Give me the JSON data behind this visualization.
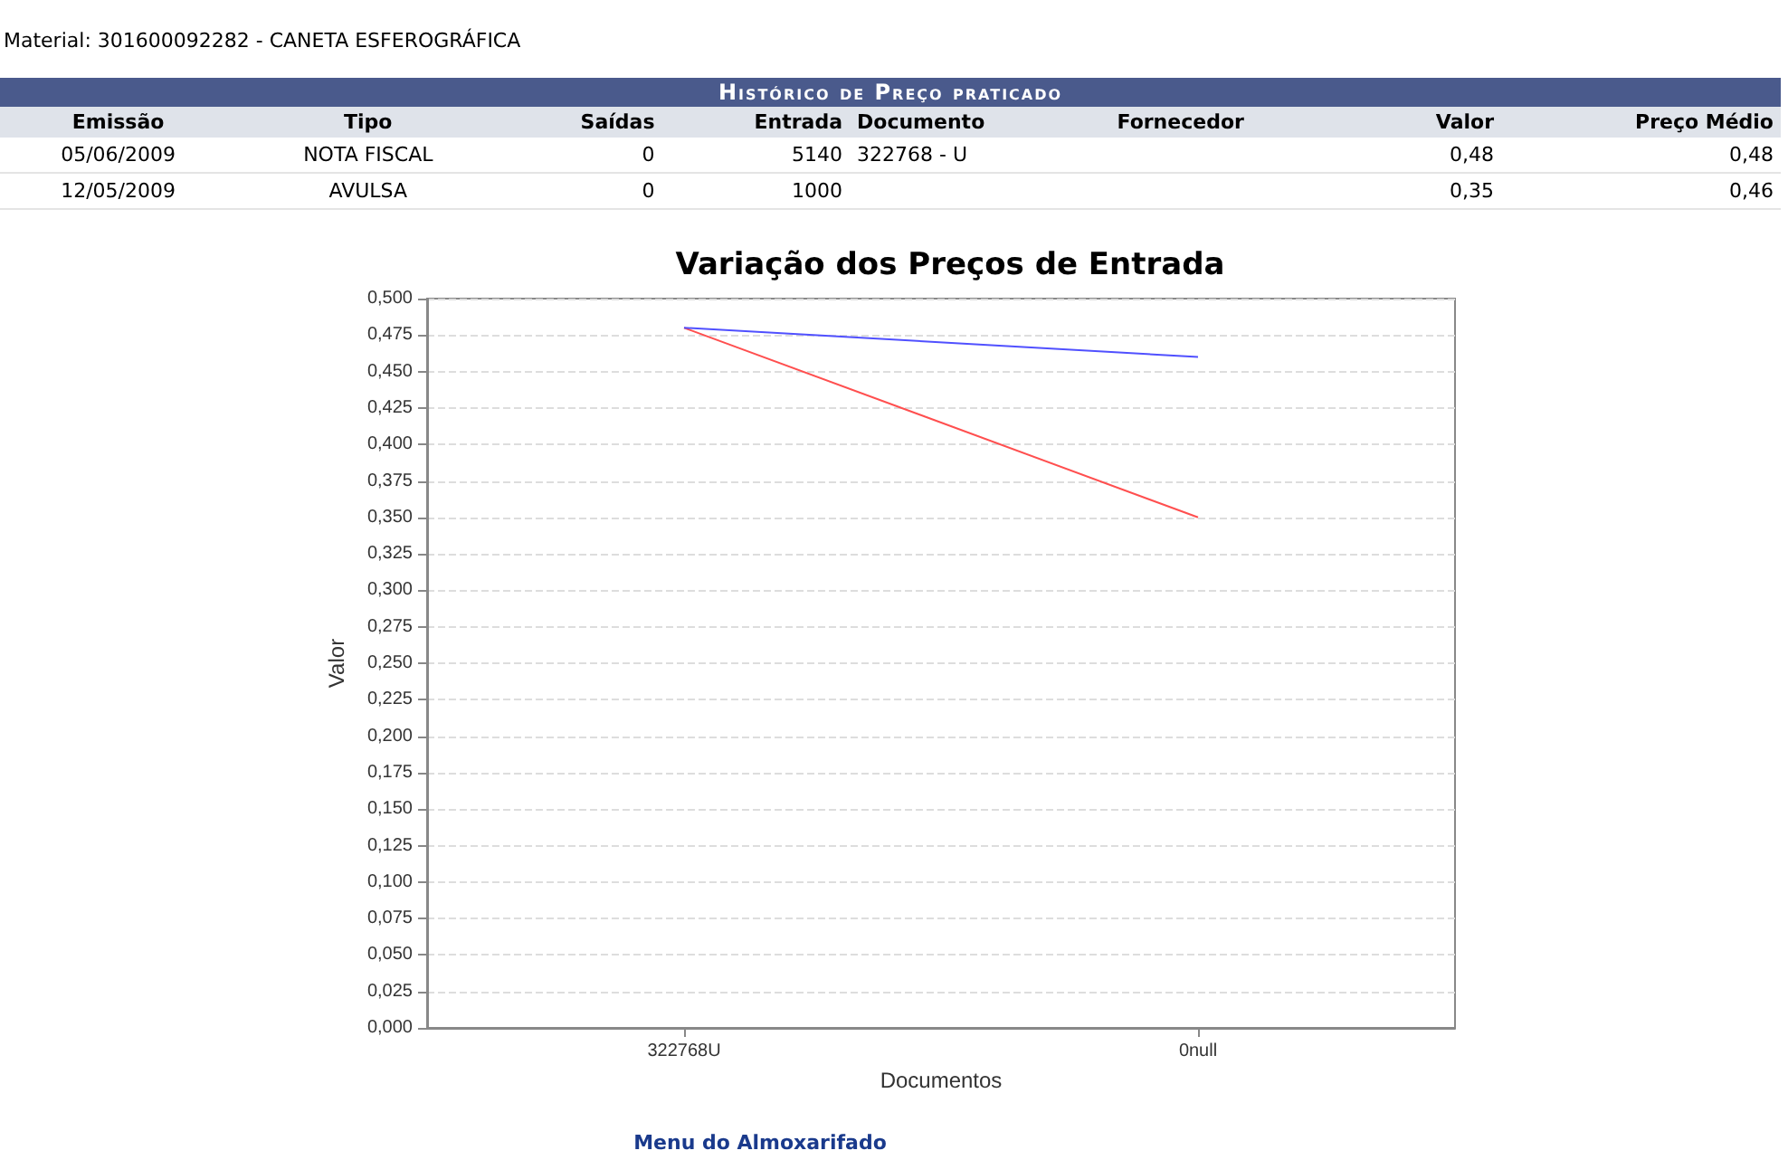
{
  "chart_data": [
    {
      "type": "other",
      "title": "Histórico de Preço praticado",
      "subtitle": "Material: 301600092282 - CANETA ESFEROGRÁFICA",
      "categories": [
        "Emissão",
        "Tipo",
        "Saídas",
        "Entrada",
        "Documento",
        "Fornecedor",
        "Valor",
        "Preço Médio"
      ],
      "annotations": [
        "05/06/2009",
        "NOTA FISCAL",
        "0",
        "5140",
        "322768 - U",
        null,
        "0,48",
        "0,48",
        "12/05/2009",
        "AVULSA",
        "0",
        "1000",
        null,
        null,
        "0,35",
        "0,46"
      ]
    },
    {
      "type": "line",
      "title": "Variação dos Preços de Entrada",
      "xlabel": "Documentos",
      "ylabel": "Valor",
      "categories": [
        "322768U",
        "0null"
      ],
      "series": [
        {
          "color": "#ff4f4f",
          "values": [
            0.48,
            0.35
          ]
        },
        {
          "color": "#5050ff",
          "values": [
            0.48,
            0.46
          ]
        }
      ],
      "ylim": [
        0,
        0.5
      ],
      "yticks": [
        {
          "value": 0,
          "label": "0,000"
        },
        {
          "value": 0.025,
          "label": "0,025"
        },
        {
          "value": 0.05,
          "label": "0,050"
        },
        {
          "value": 0.075,
          "label": "0,075"
        },
        {
          "value": 0.1,
          "label": "0,100"
        },
        {
          "value": 0.125,
          "label": "0,125"
        },
        {
          "value": 0.15,
          "label": "0,150"
        },
        {
          "value": 0.175,
          "label": "0,175"
        },
        {
          "value": 0.2,
          "label": "0,200"
        },
        {
          "value": 0.225,
          "label": "0,225"
        },
        {
          "value": 0.25,
          "label": "0,250"
        },
        {
          "value": 0.275,
          "label": "0,275"
        },
        {
          "value": 0.3,
          "label": "0,300"
        },
        {
          "value": 0.325,
          "label": "0,325"
        },
        {
          "value": 0.35,
          "label": "0,350"
        },
        {
          "value": 0.375,
          "label": "0,375"
        },
        {
          "value": 0.4,
          "label": "0,400"
        },
        {
          "value": 0.425,
          "label": "0,425"
        },
        {
          "value": 0.45,
          "label": "0,450"
        },
        {
          "value": 0.475,
          "label": "0,475"
        },
        {
          "value": 0.5,
          "label": "0,500"
        }
      ],
      "grid": "y",
      "marker": "none",
      "line_style": "solid",
      "annotations": [
        "Menu do Almoxarifado"
      ]
    }
  ]
}
